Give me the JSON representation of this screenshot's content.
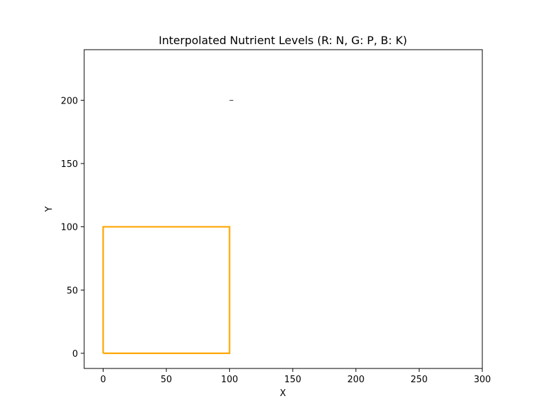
{
  "chart_data": {
    "type": "line",
    "title": "Interpolated Nutrient Levels (R: N, G: P, B: K)",
    "xlabel": "X",
    "ylabel": "Y",
    "xlim": [
      -15,
      300
    ],
    "ylim": [
      -12,
      240
    ],
    "xticks": [
      0,
      50,
      100,
      150,
      200,
      250,
      300
    ],
    "yticks": [
      0,
      50,
      100,
      150,
      200
    ],
    "grid": false,
    "series": [
      {
        "color": "#ffa500",
        "x": [
          0,
          100,
          100,
          0,
          0
        ],
        "y": [
          0,
          0,
          100,
          100,
          0
        ]
      }
    ],
    "annotations": [
      {
        "type": "dash",
        "x": [
          100,
          103
        ],
        "y": [
          200,
          200
        ],
        "color": "#000000"
      }
    ]
  }
}
